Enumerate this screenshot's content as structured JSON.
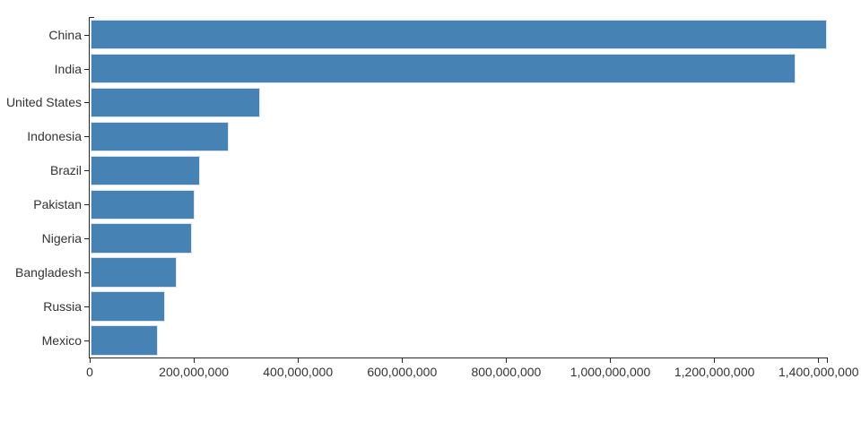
{
  "chart_data": {
    "type": "bar",
    "orientation": "horizontal",
    "categories": [
      "China",
      "India",
      "United States",
      "Indonesia",
      "Brazil",
      "Pakistan",
      "Nigeria",
      "Bangladesh",
      "Russia",
      "Mexico"
    ],
    "values": [
      1415045928,
      1354051854,
      326766748,
      266794980,
      210867954,
      200813818,
      195875237,
      166368149,
      143964709,
      130759074
    ],
    "xlabel": "",
    "ylabel": "",
    "xlim": [
      0,
      1415045928
    ],
    "x_ticks": [
      {
        "value": 0,
        "label": "0"
      },
      {
        "value": 200000000,
        "label": "200,000,000"
      },
      {
        "value": 400000000,
        "label": "400,000,000"
      },
      {
        "value": 600000000,
        "label": "600,000,000"
      },
      {
        "value": 800000000,
        "label": "800,000,000"
      },
      {
        "value": 1000000000,
        "label": "1,000,000,000"
      },
      {
        "value": 1200000000,
        "label": "1,200,000,000"
      },
      {
        "value": 1400000000,
        "label": "1,400,000,000"
      }
    ],
    "grid": false,
    "legend": "none",
    "colors": {
      "bar_fill": "#4682b4",
      "bar_border": "#d7e5f2",
      "axis_line": "#262626",
      "text": "#333333"
    }
  }
}
